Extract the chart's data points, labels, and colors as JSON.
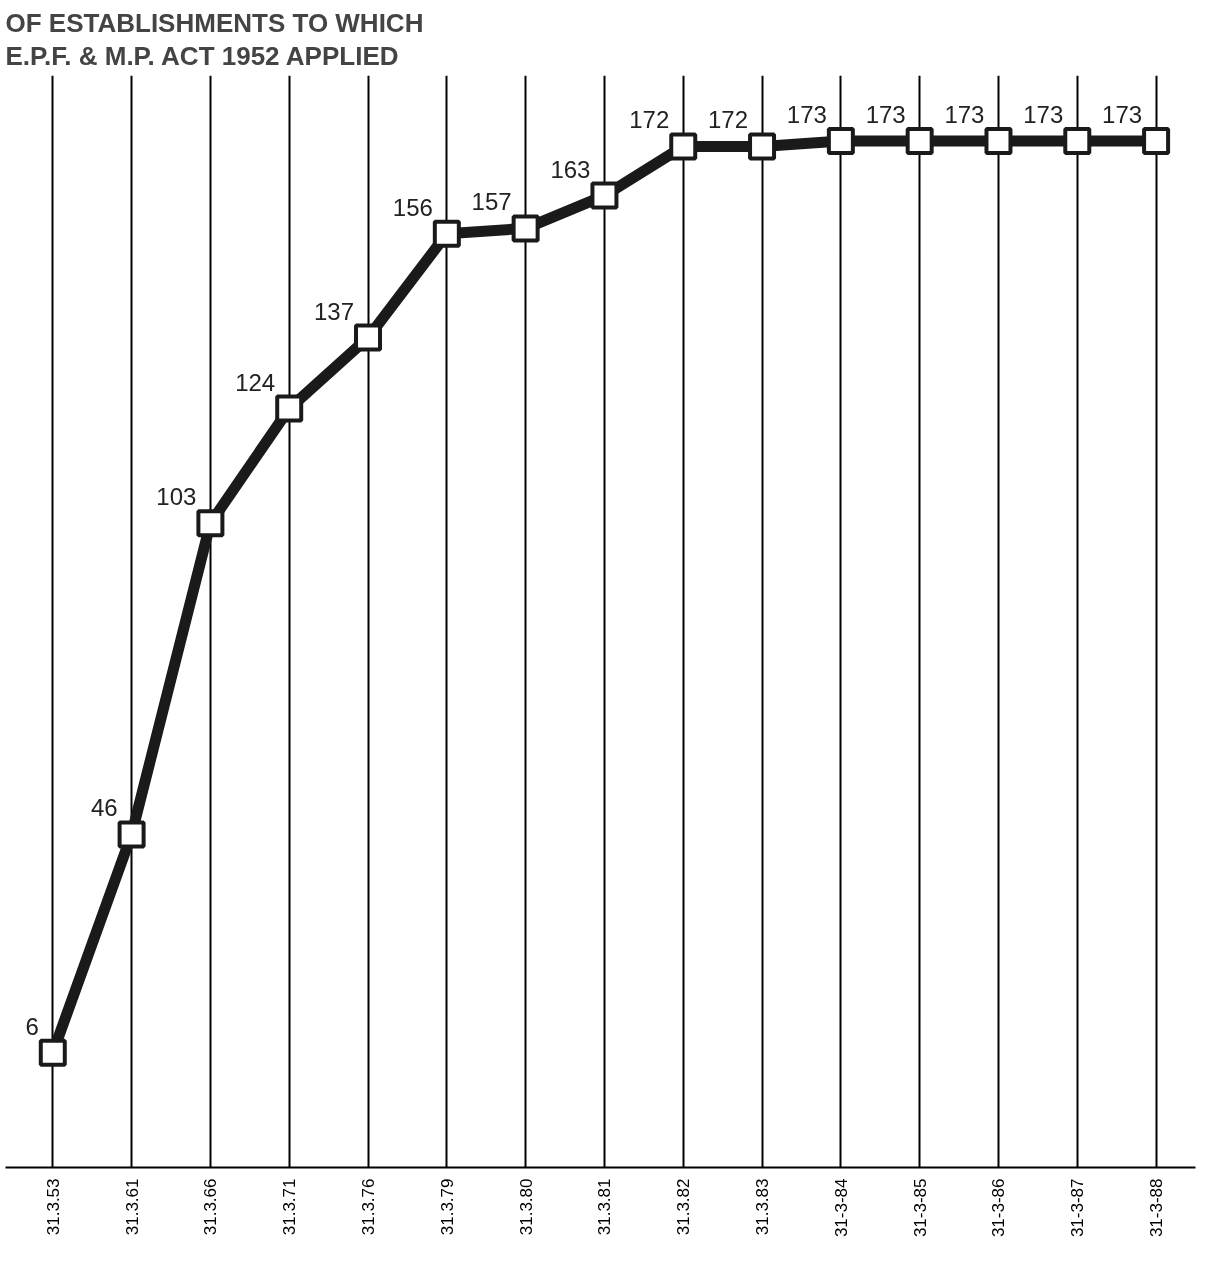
{
  "chart_data": {
    "type": "line",
    "title": "OF ESTABLISHMENTS TO WHICH\nE.P.F. & M.P. ACT 1952 APPLIED",
    "categories": [
      "31.3.53",
      "31.3.61",
      "31.3.66",
      "31.3.71",
      "31.3.76",
      "31.3.79",
      "31.3.80",
      "31.3.81",
      "31.3.82",
      "31.3.83",
      "31-3-84",
      "31-3-85",
      "31-3-86",
      "31-3-87",
      "31-3-88"
    ],
    "values": [
      6,
      46,
      103,
      124,
      137,
      156,
      157,
      163,
      172,
      172,
      173,
      173,
      173,
      173,
      173
    ],
    "color": "#1a1a1a",
    "marker": "square",
    "line_style": "solid",
    "data_labels": true,
    "grid": "x",
    "tick_labels": "x",
    "ylim": [
      -15,
      185
    ]
  }
}
